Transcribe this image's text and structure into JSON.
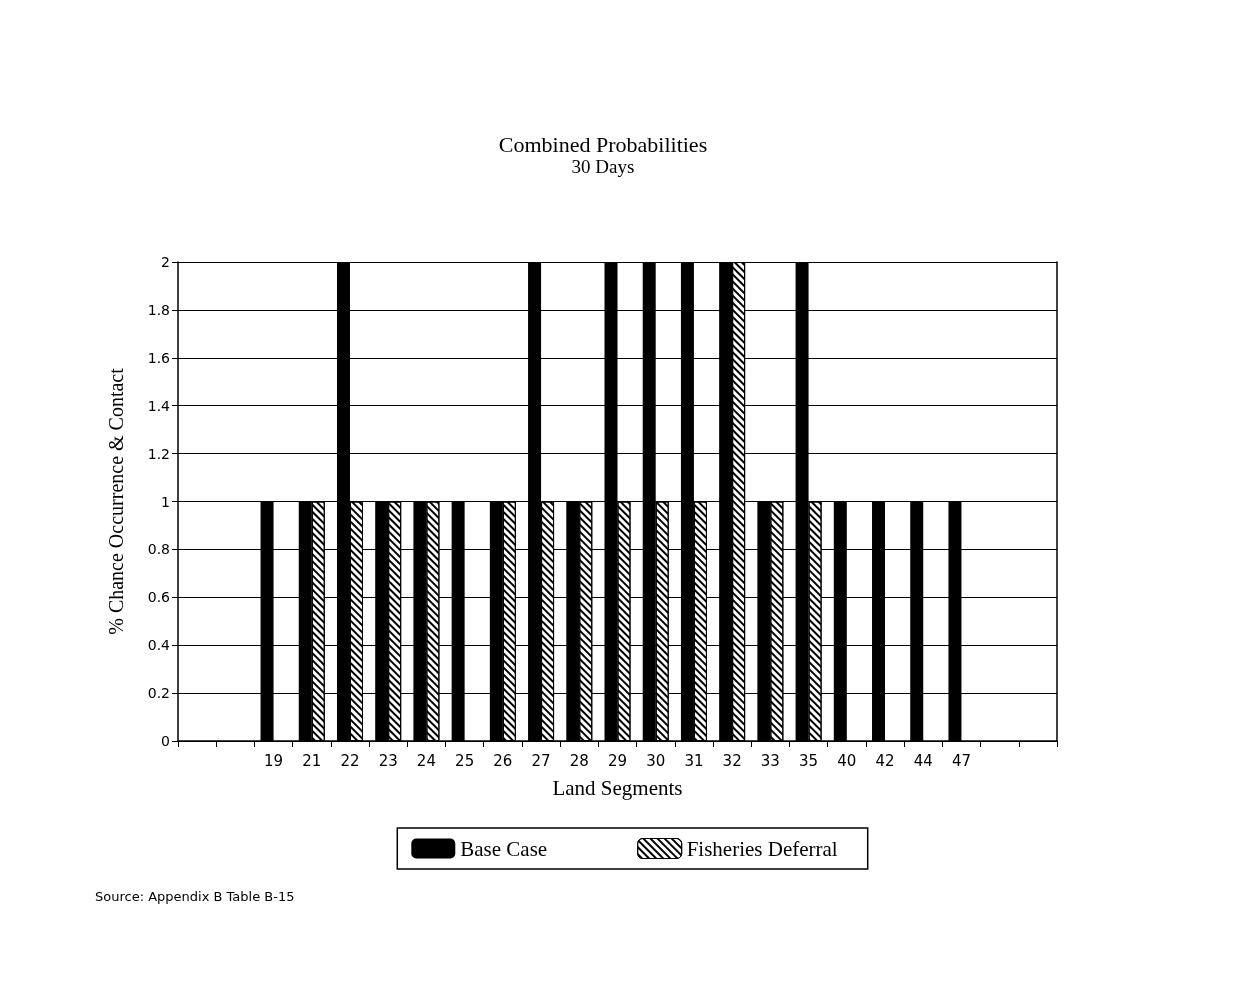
{
  "chart_data": {
    "type": "bar",
    "title": "Combined Probabilities",
    "subtitle": "30 Days",
    "xlabel": "Land Segments",
    "ylabel": "% Chance Occurrence & Contact",
    "categories": [
      null,
      null,
      "19",
      "21",
      "22",
      "23",
      "24",
      "25",
      "26",
      "27",
      "28",
      "29",
      "30",
      "31",
      "32",
      "33",
      "35",
      "40",
      "42",
      "44",
      "47",
      null,
      null
    ],
    "series": [
      {
        "name": "Base Case",
        "color": "#000000",
        "values": [
          null,
          null,
          1,
          1,
          2,
          1,
          1,
          1,
          1,
          2,
          1,
          2,
          2,
          2,
          2,
          1,
          2,
          1,
          1,
          1,
          1,
          null,
          null
        ]
      },
      {
        "name": "Fisheries Deferral",
        "color": "#ffffff",
        "values": [
          null,
          null,
          null,
          1,
          1,
          1,
          1,
          null,
          1,
          1,
          1,
          1,
          1,
          1,
          2,
          1,
          1,
          null,
          null,
          null,
          null,
          null,
          null
        ]
      }
    ],
    "ylim": [
      0,
      2
    ],
    "yticks": [
      0,
      0.2,
      0.4,
      0.6,
      0.8,
      1,
      1.2,
      1.4,
      1.6,
      1.8,
      2
    ],
    "grid": "y",
    "legend": "bottom",
    "annotations": [
      "Source: Appendix B Table B-15"
    ]
  }
}
